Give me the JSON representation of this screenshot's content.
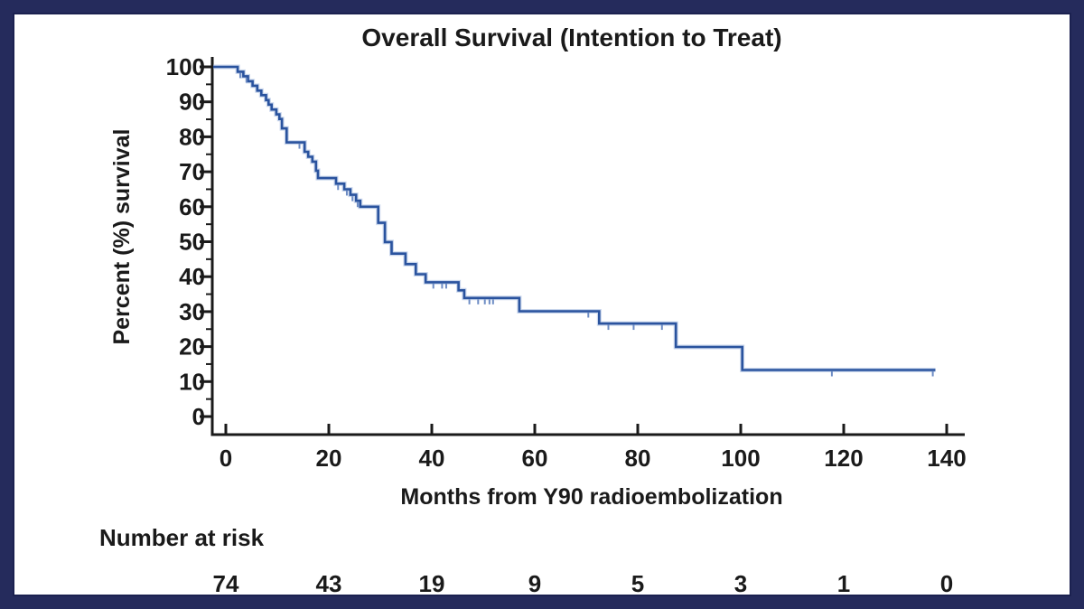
{
  "title": "Overall Survival (Intention to Treat)",
  "colors": {
    "frame_border": "#252b5c",
    "frame_inner_rim": "#1b2150",
    "background": "#ffffff",
    "axis": "#1a1a1a",
    "text": "#1a1a1a",
    "curve": "#2a539e",
    "curve_halo": "#9db4dd",
    "censor_mark": "#6d8cc4",
    "risk_label": "#3232af"
  },
  "chart_data": {
    "type": "line",
    "subtype": "kaplan-meier-step-function",
    "title": "Overall Survival (Intention to Treat)",
    "xlabel": "Months from Y90 radioembolization",
    "ylabel": "Percent (%) survival",
    "xlim": [
      0,
      143
    ],
    "ylim": [
      0,
      100
    ],
    "x_ticks": [
      0,
      20,
      40,
      60,
      80,
      100,
      120,
      140
    ],
    "y_ticks": [
      0,
      10,
      20,
      30,
      40,
      50,
      60,
      70,
      80,
      90,
      100
    ],
    "y_minor_tick_step": 5,
    "grid": "off",
    "legend": "none",
    "series_name": "Overall survival (ITT)",
    "steps": [
      [
        0,
        100
      ],
      [
        2.3,
        98.6
      ],
      [
        3.4,
        97.3
      ],
      [
        4.3,
        95.9
      ],
      [
        5.2,
        94.6
      ],
      [
        6.1,
        93.2
      ],
      [
        6.9,
        91.9
      ],
      [
        7.8,
        90.5
      ],
      [
        8.3,
        89.2
      ],
      [
        8.9,
        87.8
      ],
      [
        9.8,
        86.4
      ],
      [
        10.4,
        85.1
      ],
      [
        10.9,
        82.4
      ],
      [
        11.8,
        78.4
      ],
      [
        15.3,
        75.7
      ],
      [
        16.0,
        74.3
      ],
      [
        16.8,
        72.9
      ],
      [
        17.5,
        70.3
      ],
      [
        17.9,
        68.2
      ],
      [
        21.4,
        66.6
      ],
      [
        23.0,
        65.0
      ],
      [
        24.2,
        63.4
      ],
      [
        25.3,
        61.7
      ],
      [
        26.1,
        60.0
      ],
      [
        29.6,
        55.4
      ],
      [
        30.9,
        49.9
      ],
      [
        32.2,
        46.6
      ],
      [
        34.9,
        43.6
      ],
      [
        36.9,
        40.7
      ],
      [
        38.8,
        38.4
      ],
      [
        45.2,
        36.1
      ],
      [
        46.3,
        33.9
      ],
      [
        57.0,
        30.1
      ],
      [
        72.5,
        26.6
      ],
      [
        87.4,
        19.9
      ],
      [
        100.3,
        13.3
      ]
    ],
    "end_month": 137.8,
    "censor_marks": [
      [
        2.8,
        98.6
      ],
      [
        4.0,
        97.3
      ],
      [
        14.3,
        78.4
      ],
      [
        21.8,
        66.6
      ],
      [
        23.5,
        65.0
      ],
      [
        24.6,
        63.4
      ],
      [
        25.6,
        61.7
      ],
      [
        40.3,
        38.4
      ],
      [
        42.0,
        38.4
      ],
      [
        42.8,
        38.4
      ],
      [
        47.3,
        33.9
      ],
      [
        49.0,
        33.9
      ],
      [
        50.3,
        33.9
      ],
      [
        51.2,
        33.9
      ],
      [
        51.9,
        33.9
      ],
      [
        70.4,
        30.1
      ],
      [
        74.3,
        26.6
      ],
      [
        79.2,
        26.6
      ],
      [
        84.7,
        26.6
      ],
      [
        117.7,
        13.3
      ],
      [
        137.3,
        13.3
      ]
    ],
    "number_at_risk": {
      "label": "Number at risk",
      "months": [
        0,
        20,
        40,
        60,
        80,
        100,
        120,
        140
      ],
      "values": [
        74,
        43,
        19,
        9,
        5,
        3,
        1,
        0
      ]
    }
  }
}
